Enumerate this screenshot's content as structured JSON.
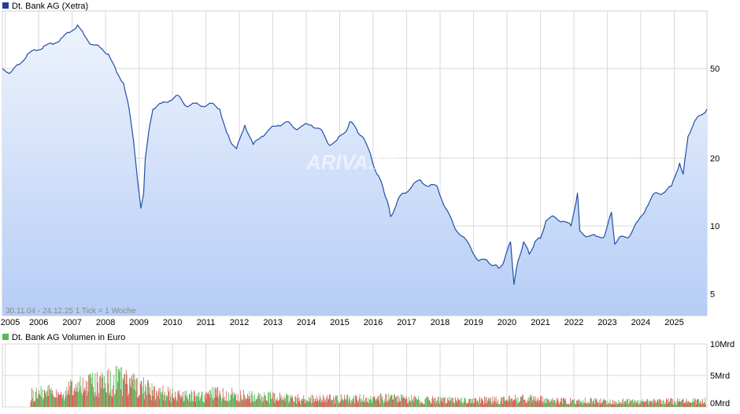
{
  "colors": {
    "price_line": "#1f4fa8",
    "price_fill_top": "#eef3fd",
    "price_fill_bottom": "#b5cdf5",
    "grid": "#d9d9d9",
    "vol_up": "#55b955",
    "vol_down": "#d9534f",
    "legend_price": "#1f3f99",
    "legend_volume": "#55b955"
  },
  "chart_data": [
    {
      "type": "line",
      "legend": "Dt. Bank AG (Xetra)",
      "info": "30.11.04 - 24.12.25    1 Tick = 1 Woche",
      "watermark": "ARIVA.DE",
      "y_scale": "log",
      "ylim": [
        4,
        90
      ],
      "y_ticks": [
        5,
        10,
        20,
        50
      ],
      "y_tick_labels": [
        "5",
        "10",
        "20",
        "50"
      ],
      "xlim": [
        "2004-11-30",
        "2025-12-24"
      ],
      "x_ticks": [
        {
          "date": "2005-01-01",
          "label": "2005"
        },
        {
          "date": "2006-01-01",
          "label": "2006"
        },
        {
          "date": "2007-01-01",
          "label": "2007"
        },
        {
          "date": "2008-01-01",
          "label": "2008"
        },
        {
          "date": "2009-01-01",
          "label": "2009"
        },
        {
          "date": "2010-01-01",
          "label": "2010"
        },
        {
          "date": "2011-01-01",
          "label": "2011"
        },
        {
          "date": "2012-01-01",
          "label": "2012"
        },
        {
          "date": "2013-01-01",
          "label": "2013"
        },
        {
          "date": "2014-01-01",
          "label": "2014"
        },
        {
          "date": "2015-01-01",
          "label": "2015"
        },
        {
          "date": "2016-01-01",
          "label": "2016"
        },
        {
          "date": "2017-01-01",
          "label": "2017"
        },
        {
          "date": "2018-01-01",
          "label": "2018"
        },
        {
          "date": "2019-01-01",
          "label": "2019"
        },
        {
          "date": "2020-01-01",
          "label": "2020"
        },
        {
          "date": "2021-01-01",
          "label": "2021"
        },
        {
          "date": "2022-01-01",
          "label": "2022"
        },
        {
          "date": "2023-01-01",
          "label": "2023"
        },
        {
          "date": "2024-01-01",
          "label": "2024"
        },
        {
          "date": "2025-01-01",
          "label": "2025"
        }
      ],
      "grid": true,
      "x": [
        "2004-11-30",
        "2005-03-01",
        "2005-06-01",
        "2005-09-01",
        "2005-12-01",
        "2006-03-01",
        "2006-06-01",
        "2006-09-01",
        "2006-12-01",
        "2007-03-01",
        "2007-05-15",
        "2007-08-01",
        "2007-11-01",
        "2008-02-01",
        "2008-05-01",
        "2008-07-15",
        "2008-09-15",
        "2008-11-01",
        "2008-12-15",
        "2009-01-20",
        "2009-02-20",
        "2009-03-10",
        "2009-04-15",
        "2009-06-01",
        "2009-09-01",
        "2009-12-01",
        "2010-03-01",
        "2010-06-01",
        "2010-09-01",
        "2010-12-01",
        "2011-03-01",
        "2011-06-01",
        "2011-08-15",
        "2011-09-20",
        "2011-12-01",
        "2012-03-01",
        "2012-06-01",
        "2012-09-01",
        "2012-12-01",
        "2013-03-01",
        "2013-06-01",
        "2013-09-01",
        "2013-12-01",
        "2014-03-01",
        "2014-06-01",
        "2014-09-01",
        "2014-12-01",
        "2015-03-01",
        "2015-04-20",
        "2015-07-01",
        "2015-09-01",
        "2015-12-01",
        "2016-02-10",
        "2016-04-15",
        "2016-06-01",
        "2016-07-10",
        "2016-09-25",
        "2016-12-01",
        "2017-03-01",
        "2017-06-01",
        "2017-09-01",
        "2017-12-01",
        "2018-03-01",
        "2018-06-01",
        "2018-09-01",
        "2018-12-01",
        "2019-03-01",
        "2019-06-01",
        "2019-08-15",
        "2019-10-01",
        "2019-12-01",
        "2020-02-10",
        "2020-03-18",
        "2020-05-01",
        "2020-07-01",
        "2020-09-01",
        "2020-11-01",
        "2021-01-01",
        "2021-03-01",
        "2021-06-01",
        "2021-09-01",
        "2021-12-01",
        "2022-02-10",
        "2022-03-07",
        "2022-06-01",
        "2022-09-01",
        "2022-12-01",
        "2023-02-15",
        "2023-03-24",
        "2023-06-01",
        "2023-09-01",
        "2023-12-01",
        "2024-03-01",
        "2024-06-01",
        "2024-09-01",
        "2024-12-01",
        "2025-03-01",
        "2025-04-08",
        "2025-06-01",
        "2025-09-01",
        "2025-12-24"
      ],
      "y": [
        50,
        48,
        52,
        58,
        60,
        63,
        64,
        68,
        72,
        78,
        70,
        64,
        62,
        58,
        48,
        43,
        33,
        24,
        16,
        12,
        14,
        20,
        26,
        33,
        35,
        36,
        38,
        34,
        35,
        34,
        35,
        33,
        26,
        24,
        22,
        28,
        23,
        25,
        27,
        28,
        29,
        27,
        28,
        28,
        27,
        23,
        24,
        26,
        29,
        27,
        25,
        21,
        17,
        15,
        13,
        11,
        13,
        14,
        15,
        16,
        15,
        15,
        12,
        10,
        9,
        8,
        7,
        7,
        6.7,
        6.5,
        7,
        8.5,
        5.5,
        7,
        8.5,
        7.5,
        8.5,
        8.8,
        10.5,
        11,
        10.5,
        10,
        14,
        9.5,
        9,
        9,
        9,
        11.5,
        8.3,
        9,
        9,
        10.5,
        12,
        14,
        14,
        15,
        19,
        17,
        25,
        30,
        33
      ]
    },
    {
      "type": "bar",
      "legend": "Dt. Bank AG Volumen in Euro",
      "ylim": [
        0,
        10
      ],
      "y_tick_labels": [
        "0Mrd",
        "5Mrd",
        "10Mrd"
      ],
      "x": [
        "2005-06-01",
        "2006-06-01",
        "2007-01-01",
        "2007-06-01",
        "2008-01-01",
        "2008-06-01",
        "2009-01-01",
        "2009-06-01",
        "2010-06-01",
        "2011-06-01",
        "2012-06-01",
        "2013-06-01",
        "2014-06-01",
        "2015-06-01",
        "2016-06-01",
        "2017-06-01",
        "2018-06-01",
        "2019-06-01",
        "2020-06-01",
        "2021-06-01",
        "2022-06-01",
        "2023-06-01",
        "2024-06-01",
        "2025-06-01"
      ],
      "values": [
        1.8,
        2.5,
        3.0,
        3.5,
        4.0,
        4.5,
        3.5,
        2.5,
        1.8,
        2.2,
        1.8,
        1.5,
        1.3,
        1.4,
        1.5,
        1.2,
        1.1,
        1.1,
        1.4,
        1.0,
        1.0,
        0.9,
        0.9,
        1.0
      ]
    }
  ]
}
